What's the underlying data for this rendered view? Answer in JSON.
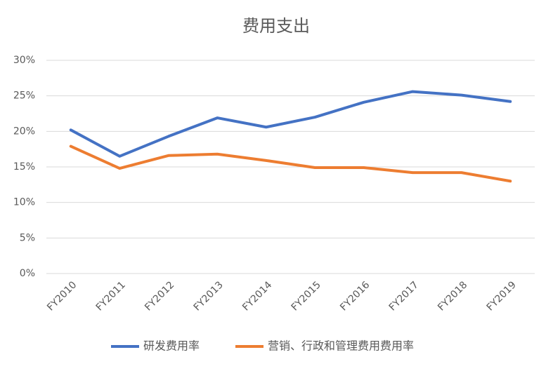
{
  "chart_data": {
    "type": "line",
    "title": "费用支出",
    "categories": [
      "FY2010",
      "FY2011",
      "FY2012",
      "FY2013",
      "FY2014",
      "FY2015",
      "FY2016",
      "FY2017",
      "FY2018",
      "FY2019"
    ],
    "series": [
      {
        "name": "研发费用率",
        "color": "#4472c4",
        "values": [
          20.2,
          16.5,
          19.3,
          21.9,
          20.6,
          22.0,
          24.1,
          25.6,
          25.1,
          24.2
        ]
      },
      {
        "name": "营销、行政和管理费用费用率",
        "color": "#ed7d31",
        "values": [
          17.9,
          14.8,
          16.6,
          16.8,
          15.9,
          14.9,
          14.9,
          14.2,
          14.2,
          13.0
        ]
      }
    ],
    "ylim": [
      0,
      30
    ],
    "yticks": [
      {
        "value": 0,
        "label": "0%"
      },
      {
        "value": 5,
        "label": "5%"
      },
      {
        "value": 10,
        "label": "10%"
      },
      {
        "value": 15,
        "label": "15%"
      },
      {
        "value": 20,
        "label": "20%"
      },
      {
        "value": 25,
        "label": "25%"
      },
      {
        "value": 30,
        "label": "30%"
      }
    ],
    "grid": true
  }
}
